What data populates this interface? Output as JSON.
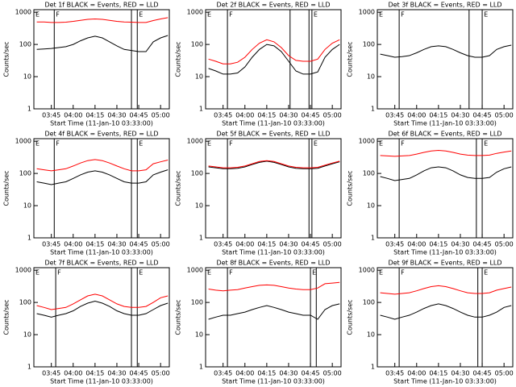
{
  "chart_data": [
    {
      "type": "line",
      "title": "Det 1f BLACK = Events, RED = LLD",
      "x_label": "Start Time (11-Jan-10 03:33:00)",
      "y_label": "Counts/sec",
      "log_y": true,
      "x": [
        "03:35",
        "03:40",
        "03:45",
        "03:50",
        "03:55",
        "04:00",
        "04:05",
        "04:10",
        "04:15",
        "04:20",
        "04:25",
        "04:30",
        "04:35",
        "04:40",
        "04:45",
        "04:50",
        "04:55",
        "05:00",
        "05:05"
      ],
      "xlim": [
        "03:33",
        "05:06"
      ],
      "xticks": [
        "03:45",
        "04:00",
        "04:15",
        "04:30",
        "04:45",
        "05:00"
      ],
      "ylim": [
        1,
        1200
      ],
      "yticks": [
        1,
        10,
        100,
        1000
      ],
      "events": [
        {
          "x": "03:33",
          "label": "E"
        },
        {
          "x": "03:47",
          "label": "F"
        },
        {
          "x": "04:40"
        },
        {
          "x": "04:44",
          "label": "E"
        }
      ],
      "series": [
        {
          "name": "Events",
          "color": "#000000",
          "values": [
            70,
            72,
            75,
            80,
            85,
            100,
            130,
            160,
            180,
            160,
            120,
            90,
            70,
            65,
            60,
            60,
            120,
            160,
            190
          ]
        },
        {
          "name": "LLD",
          "color": "#ff0000",
          "values": [
            500,
            500,
            480,
            480,
            490,
            520,
            560,
            600,
            620,
            600,
            560,
            520,
            500,
            490,
            480,
            480,
            550,
            620,
            680
          ]
        }
      ]
    },
    {
      "type": "line",
      "title": "Det 2f BLACK = Events, RED = LLD",
      "x_label": "Start Time (11-Jan-10 03:33:00)",
      "y_label": "Counts/sec",
      "log_y": true,
      "x": [
        "03:35",
        "03:40",
        "03:45",
        "03:50",
        "03:55",
        "04:00",
        "04:05",
        "04:10",
        "04:15",
        "04:20",
        "04:25",
        "04:30",
        "04:35",
        "04:40",
        "04:45",
        "04:50",
        "04:55",
        "05:00",
        "05:05"
      ],
      "xlim": [
        "03:33",
        "05:06"
      ],
      "xticks": [
        "03:45",
        "04:00",
        "04:15",
        "04:30",
        "04:45",
        "05:00"
      ],
      "ylim": [
        1,
        1200
      ],
      "yticks": [
        1,
        10,
        100,
        1000
      ],
      "events": [
        {
          "x": "03:33",
          "label": "E"
        },
        {
          "x": "03:48",
          "label": "F"
        },
        {
          "x": "04:31"
        },
        {
          "x": "04:44"
        },
        {
          "x": "04:46",
          "label": "E"
        }
      ],
      "series": [
        {
          "name": "Events",
          "color": "#000000",
          "values": [
            18,
            15,
            12,
            12,
            13,
            20,
            40,
            70,
            100,
            90,
            60,
            30,
            15,
            12,
            12,
            14,
            40,
            70,
            100
          ]
        },
        {
          "name": "LLD",
          "color": "#ff0000",
          "values": [
            35,
            30,
            25,
            25,
            28,
            40,
            70,
            110,
            140,
            120,
            80,
            45,
            32,
            30,
            30,
            35,
            70,
            110,
            140
          ]
        }
      ]
    },
    {
      "type": "line",
      "title": "Det 3f BLACK = Events, RED = LLD",
      "x_label": "Start Time (11-Jan-10 03:33:00)",
      "y_label": "Counts/sec",
      "log_y": true,
      "x": [
        "03:35",
        "03:40",
        "03:45",
        "03:50",
        "03:55",
        "04:00",
        "04:05",
        "04:10",
        "04:15",
        "04:20",
        "04:25",
        "04:30",
        "04:35",
        "04:40",
        "04:45",
        "04:50",
        "04:55",
        "05:00",
        "05:05"
      ],
      "xlim": [
        "03:33",
        "05:06"
      ],
      "xticks": [
        "03:45",
        "04:00",
        "04:15",
        "04:30",
        "04:45",
        "05:00"
      ],
      "ylim": [
        1,
        1200
      ],
      "yticks": [
        1,
        10,
        100,
        1000
      ],
      "events": [
        {
          "x": "03:33",
          "label": "E"
        },
        {
          "x": "03:48",
          "label": "F"
        },
        {
          "x": "04:36"
        },
        {
          "x": "04:45",
          "label": "E"
        }
      ],
      "series": [
        {
          "name": "Events",
          "color": "#000000",
          "values": [
            50,
            45,
            40,
            42,
            45,
            55,
            70,
            85,
            90,
            85,
            70,
            55,
            45,
            40,
            40,
            45,
            70,
            85,
            95
          ]
        }
      ]
    },
    {
      "type": "line",
      "title": "Det 4f BLACK = Events, RED = LLD",
      "x_label": "Start Time (11-Jan-10 03:33:00)",
      "y_label": "Counts/sec",
      "log_y": true,
      "x": [
        "03:35",
        "03:40",
        "03:45",
        "03:50",
        "03:55",
        "04:00",
        "04:05",
        "04:10",
        "04:15",
        "04:20",
        "04:25",
        "04:30",
        "04:35",
        "04:40",
        "04:45",
        "04:50",
        "04:55",
        "05:00",
        "05:05"
      ],
      "xlim": [
        "03:33",
        "05:06"
      ],
      "xticks": [
        "03:45",
        "04:00",
        "04:15",
        "04:30",
        "04:45",
        "05:00"
      ],
      "ylim": [
        1,
        1200
      ],
      "yticks": [
        1,
        10,
        100,
        1000
      ],
      "events": [
        {
          "x": "03:33",
          "label": "E"
        },
        {
          "x": "03:47",
          "label": "F"
        },
        {
          "x": "04:40"
        },
        {
          "x": "04:44",
          "label": "E"
        }
      ],
      "series": [
        {
          "name": "Events",
          "color": "#000000",
          "values": [
            55,
            50,
            45,
            50,
            55,
            70,
            90,
            110,
            120,
            110,
            90,
            70,
            55,
            50,
            50,
            55,
            90,
            110,
            130
          ]
        },
        {
          "name": "LLD",
          "color": "#ff0000",
          "values": [
            140,
            130,
            120,
            130,
            140,
            170,
            210,
            250,
            270,
            250,
            210,
            170,
            140,
            120,
            120,
            130,
            200,
            230,
            260
          ]
        }
      ]
    },
    {
      "type": "line",
      "title": "Det 5f BLACK = Events, RED = LLD",
      "x_label": "Start Time (11-Jan-10 03:33:00)",
      "y_label": "Counts/sec",
      "log_y": true,
      "x": [
        "03:35",
        "03:40",
        "03:45",
        "03:50",
        "03:55",
        "04:00",
        "04:05",
        "04:10",
        "04:15",
        "04:20",
        "04:25",
        "04:30",
        "04:35",
        "04:40",
        "04:45",
        "04:50",
        "04:55",
        "05:00",
        "05:05"
      ],
      "xlim": [
        "03:33",
        "05:06"
      ],
      "xticks": [
        "03:45",
        "04:00",
        "04:15",
        "04:30",
        "04:45",
        "05:00"
      ],
      "ylim": [
        1,
        1200
      ],
      "yticks": [
        1,
        10,
        100,
        1000
      ],
      "events": [
        {
          "x": "03:33",
          "label": "E"
        },
        {
          "x": "03:48",
          "label": "F"
        },
        {
          "x": "04:44"
        },
        {
          "x": "04:46",
          "label": "E"
        }
      ],
      "series": [
        {
          "name": "Events",
          "color": "#000000",
          "values": [
            160,
            150,
            140,
            140,
            145,
            160,
            190,
            220,
            240,
            220,
            190,
            160,
            145,
            140,
            140,
            145,
            170,
            200,
            230
          ]
        },
        {
          "name": "LLD",
          "color": "#ff0000",
          "values": [
            170,
            160,
            150,
            150,
            155,
            170,
            200,
            235,
            250,
            235,
            200,
            170,
            155,
            150,
            150,
            155,
            180,
            210,
            240
          ]
        }
      ]
    },
    {
      "type": "line",
      "title": "Det 6f BLACK = Events, RED = LLD",
      "x_label": "Start Time (11-Jan-10 03:33:00)",
      "y_label": "Counts/sec",
      "log_y": true,
      "x": [
        "03:35",
        "03:40",
        "03:45",
        "03:50",
        "03:55",
        "04:00",
        "04:05",
        "04:10",
        "04:15",
        "04:20",
        "04:25",
        "04:30",
        "04:35",
        "04:40",
        "04:45",
        "04:50",
        "04:55",
        "05:00",
        "05:05"
      ],
      "xlim": [
        "03:33",
        "05:06"
      ],
      "xticks": [
        "03:45",
        "04:00",
        "04:15",
        "04:30",
        "04:45",
        "05:00"
      ],
      "ylim": [
        1,
        1200
      ],
      "yticks": [
        1,
        10,
        100,
        1000
      ],
      "events": [
        {
          "x": "03:33",
          "label": "E"
        },
        {
          "x": "03:48",
          "label": "F"
        },
        {
          "x": "04:41"
        },
        {
          "x": "04:45",
          "label": "E"
        }
      ],
      "series": [
        {
          "name": "Events",
          "color": "#000000",
          "values": [
            80,
            70,
            60,
            65,
            70,
            90,
            120,
            150,
            160,
            150,
            120,
            90,
            75,
            70,
            70,
            75,
            110,
            140,
            160
          ]
        },
        {
          "name": "LLD",
          "color": "#ff0000",
          "values": [
            360,
            350,
            340,
            350,
            360,
            400,
            450,
            500,
            520,
            500,
            450,
            400,
            370,
            360,
            360,
            370,
            420,
            460,
            500
          ]
        }
      ]
    },
    {
      "type": "line",
      "title": "Det 7f BLACK = Events, RED = LLD",
      "x_label": "Start Time (11-Jan-10 03:33:00)",
      "y_label": "Counts/sec",
      "log_y": true,
      "x": [
        "03:35",
        "03:40",
        "03:45",
        "03:50",
        "03:55",
        "04:00",
        "04:05",
        "04:10",
        "04:15",
        "04:20",
        "04:25",
        "04:30",
        "04:35",
        "04:40",
        "04:45",
        "04:50",
        "04:55",
        "05:00",
        "05:05"
      ],
      "xlim": [
        "03:33",
        "05:06"
      ],
      "xticks": [
        "03:45",
        "04:00",
        "04:15",
        "04:30",
        "04:45",
        "05:00"
      ],
      "ylim": [
        1,
        1200
      ],
      "yticks": [
        1,
        10,
        100,
        1000
      ],
      "events": [
        {
          "x": "03:33",
          "label": "E"
        },
        {
          "x": "03:48",
          "label": "F"
        },
        {
          "x": "04:40"
        },
        {
          "x": "04:44",
          "label": "E"
        }
      ],
      "series": [
        {
          "name": "Events",
          "color": "#000000",
          "values": [
            45,
            40,
            35,
            40,
            45,
            55,
            75,
            95,
            110,
            95,
            75,
            55,
            45,
            40,
            40,
            45,
            60,
            80,
            95
          ]
        },
        {
          "name": "LLD",
          "color": "#ff0000",
          "values": [
            80,
            70,
            60,
            65,
            70,
            90,
            120,
            160,
            180,
            160,
            120,
            90,
            75,
            70,
            70,
            75,
            100,
            140,
            160
          ]
        }
      ]
    },
    {
      "type": "line",
      "title": "Det 8f BLACK = Events, RED = LLD",
      "x_label": "Start Time (11-Jan-10 03:33:00)",
      "y_label": "Counts/sec",
      "log_y": true,
      "x": [
        "03:35",
        "03:40",
        "03:45",
        "03:50",
        "03:55",
        "04:00",
        "04:05",
        "04:10",
        "04:15",
        "04:20",
        "04:25",
        "04:30",
        "04:35",
        "04:40",
        "04:45",
        "04:50",
        "04:55",
        "05:00",
        "05:05"
      ],
      "xlim": [
        "03:33",
        "05:06"
      ],
      "xticks": [
        "03:45",
        "04:00",
        "04:15",
        "04:30",
        "04:45",
        "05:00"
      ],
      "ylim": [
        1,
        1200
      ],
      "yticks": [
        1,
        10,
        100,
        1000
      ],
      "events": [
        {
          "x": "03:33",
          "label": "E"
        },
        {
          "x": "03:48",
          "label": "F"
        },
        {
          "x": "04:45",
          "label": "E"
        },
        {
          "x": "04:49"
        }
      ],
      "series": [
        {
          "name": "Events",
          "color": "#000000",
          "values": [
            30,
            35,
            40,
            40,
            45,
            50,
            60,
            70,
            80,
            70,
            60,
            50,
            45,
            40,
            40,
            30,
            60,
            80,
            90
          ]
        },
        {
          "name": "LLD",
          "color": "#ff0000",
          "values": [
            260,
            240,
            230,
            240,
            250,
            280,
            310,
            340,
            350,
            340,
            310,
            280,
            260,
            250,
            250,
            280,
            380,
            400,
            420
          ]
        }
      ]
    },
    {
      "type": "line",
      "title": "Det 9f BLACK = Events, RED = LLD",
      "x_label": "Start Time (11-Jan-10 03:33:00)",
      "y_label": "Counts/sec",
      "log_y": true,
      "x": [
        "03:35",
        "03:40",
        "03:45",
        "03:50",
        "03:55",
        "04:00",
        "04:05",
        "04:10",
        "04:15",
        "04:20",
        "04:25",
        "04:30",
        "04:35",
        "04:40",
        "04:45",
        "04:50",
        "04:55",
        "05:00",
        "05:05"
      ],
      "xlim": [
        "03:33",
        "05:06"
      ],
      "xticks": [
        "03:45",
        "04:00",
        "04:15",
        "04:30",
        "04:45",
        "05:00"
      ],
      "ylim": [
        1,
        1200
      ],
      "yticks": [
        1,
        10,
        100,
        1000
      ],
      "events": [
        {
          "x": "03:33",
          "label": "E"
        },
        {
          "x": "03:48",
          "label": "F"
        },
        {
          "x": "04:42"
        },
        {
          "x": "04:45",
          "label": "E"
        }
      ],
      "series": [
        {
          "name": "Events",
          "color": "#000000",
          "values": [
            40,
            35,
            30,
            35,
            40,
            50,
            65,
            80,
            90,
            80,
            65,
            50,
            40,
            35,
            35,
            40,
            50,
            70,
            80
          ]
        },
        {
          "name": "LLD",
          "color": "#ff0000",
          "values": [
            200,
            190,
            180,
            190,
            200,
            230,
            270,
            310,
            330,
            310,
            270,
            230,
            200,
            190,
            190,
            200,
            240,
            270,
            300
          ]
        }
      ]
    }
  ]
}
